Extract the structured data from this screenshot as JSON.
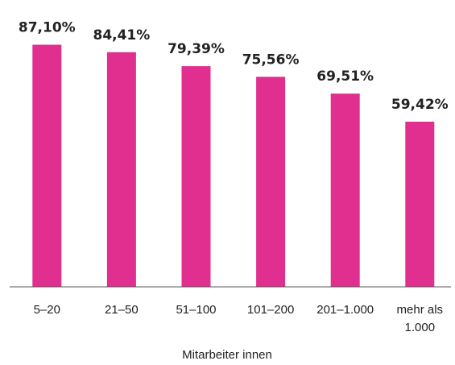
{
  "chart_data": {
    "type": "bar",
    "x_label": "Mitarbeiter innen",
    "categories": [
      "5–20",
      "21–50",
      "51–100",
      "101–200",
      "201–1.000",
      "mehr als\n1.000"
    ],
    "values": [
      87.1,
      84.41,
      79.39,
      75.56,
      69.51,
      59.42
    ],
    "value_labels": [
      "87,10%",
      "84,41%",
      "79,39%",
      "75,56%",
      "69,51%",
      "59,42%"
    ],
    "color": "#e02f8e",
    "ylim": [
      0,
      100
    ]
  }
}
